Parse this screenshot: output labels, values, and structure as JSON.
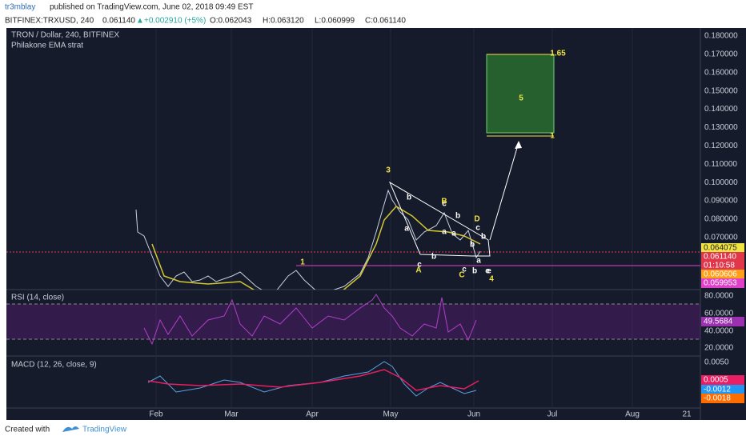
{
  "header": {
    "user": "tr3mblay",
    "published": "published on TradingView.com, June 02, 2018 09:49 EST",
    "symbol": "BITFINEX:TRXUSD, 240",
    "last": "0.061140",
    "arrow": "▲",
    "change": "+0.002910 (+5%)",
    "open": "O:0.062043",
    "high": "H:0.063120",
    "low": "L:0.060999",
    "close": "C:0.061140"
  },
  "main_pane": {
    "title": "TRON / Dollar, 240, BITFINEX",
    "indicator": "Philakone EMA strat",
    "price_axis": [
      "0.180000",
      "0.170000",
      "0.160000",
      "0.150000",
      "0.140000",
      "0.130000",
      "0.120000",
      "0.110000",
      "0.100000",
      "0.090000",
      "0.080000",
      "0.070000"
    ],
    "price_badges": [
      {
        "text": "0.064075",
        "color": "#f0e442"
      },
      {
        "text": "0.061140",
        "color": "#e0374b"
      },
      {
        "text": "01:10:58",
        "color": "#e0374b"
      },
      {
        "text": "0.060606",
        "color": "#ff9f1a"
      },
      {
        "text": "0.059953",
        "color": "#e040c8"
      }
    ]
  },
  "annotations": [
    "3",
    "1",
    "4",
    "5",
    "1.65",
    "1",
    "b",
    "a",
    "b",
    "c",
    "a",
    "b",
    "c",
    "b",
    "a",
    "c",
    "b",
    "a",
    "c",
    "A",
    "C",
    "B",
    "D",
    "c",
    "b",
    "e"
  ],
  "rsi_pane": {
    "title": "RSI (14, close)",
    "axis": [
      "80.0000",
      "60.0000",
      "40.0000",
      "20.0000"
    ],
    "badge": {
      "text": "49.5684",
      "color": "#9b30b0"
    }
  },
  "macd_pane": {
    "title": "MACD (12, 26, close, 9)",
    "axis": [
      "0.0050"
    ],
    "badges": [
      {
        "text": "0.0005",
        "color": "#e91e63"
      },
      {
        "text": "-0.0012",
        "color": "#2196f3"
      },
      {
        "text": "-0.0018",
        "color": "#ff6d00"
      }
    ]
  },
  "time_axis": [
    "Feb",
    "Mar",
    "Apr",
    "May",
    "Jun",
    "Jul",
    "Aug",
    "21"
  ],
  "footer": {
    "created": "Created with",
    "brand": "TradingView"
  }
}
